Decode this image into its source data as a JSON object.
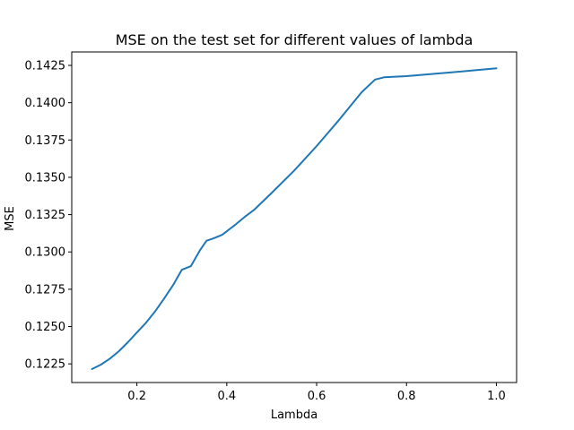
{
  "chart_data": {
    "type": "line",
    "title": "MSE on the test set for different values of lambda",
    "xlabel": "Lambda",
    "ylabel": "MSE",
    "xlim": [
      0.055,
      1.045
    ],
    "ylim": [
      0.12125,
      0.1434
    ],
    "xticks": [
      0.2,
      0.4,
      0.6,
      0.8,
      1.0
    ],
    "xtick_labels": [
      "0.2",
      "0.4",
      "0.6",
      "0.8",
      "1.0"
    ],
    "yticks": [
      0.1225,
      0.125,
      0.1275,
      0.13,
      0.1325,
      0.135,
      0.1375,
      0.14,
      0.1425
    ],
    "ytick_labels": [
      "0.1225",
      "0.1250",
      "0.1275",
      "0.1300",
      "0.1325",
      "0.1350",
      "0.1375",
      "0.1400",
      "0.1425"
    ],
    "grid": false,
    "series": [
      {
        "color": "#1f77b4",
        "x": [
          0.1,
          0.12,
          0.14,
          0.16,
          0.18,
          0.2,
          0.22,
          0.24,
          0.26,
          0.28,
          0.3,
          0.32,
          0.34,
          0.355,
          0.37,
          0.39,
          0.42,
          0.44,
          0.46,
          0.5,
          0.55,
          0.6,
          0.65,
          0.7,
          0.73,
          0.75,
          0.8,
          0.9,
          1.0
        ],
        "y": [
          0.12215,
          0.12245,
          0.12285,
          0.12335,
          0.12395,
          0.1246,
          0.12525,
          0.126,
          0.12685,
          0.12775,
          0.1288,
          0.12905,
          0.1301,
          0.13075,
          0.1309,
          0.13115,
          0.13185,
          0.13235,
          0.1328,
          0.13395,
          0.13545,
          0.1371,
          0.13885,
          0.1407,
          0.14155,
          0.1417,
          0.14178,
          0.14203,
          0.1423
        ]
      }
    ]
  }
}
